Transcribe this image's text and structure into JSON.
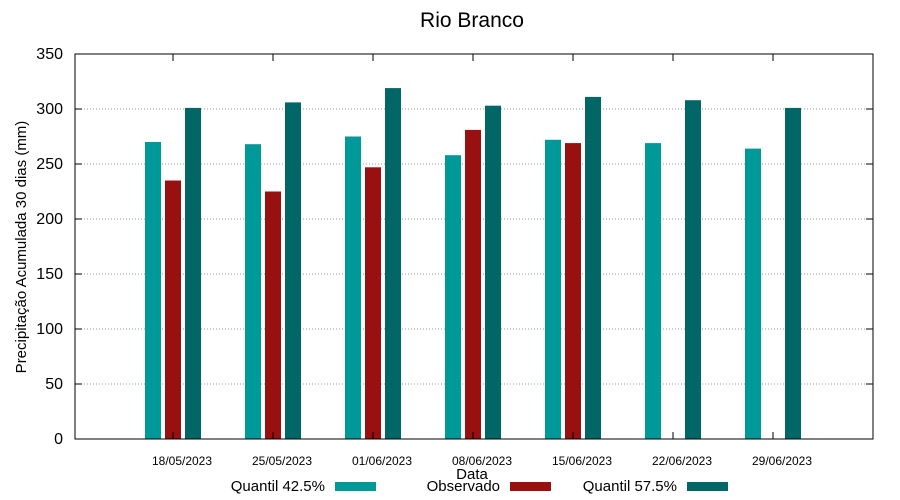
{
  "chart_data": {
    "type": "bar",
    "title": "Rio Branco",
    "xlabel": "Data",
    "ylabel": "Precipitação Acumulada 30 dias (mm)",
    "ylim": [
      0,
      350
    ],
    "yticks": [
      0,
      50,
      100,
      150,
      200,
      250,
      300,
      350
    ],
    "grid": true,
    "legend_position": "bottom",
    "categories": [
      "18/05/2023",
      "25/05/2023",
      "01/06/2023",
      "08/06/2023",
      "15/06/2023",
      "22/06/2023",
      "29/06/2023"
    ],
    "series": [
      {
        "name": "Quantil 42.5%",
        "color": "#009999",
        "values": [
          270,
          268,
          275,
          258,
          272,
          269,
          264
        ]
      },
      {
        "name": "Observado",
        "color": "#991010",
        "values": [
          235,
          225,
          247,
          281,
          269,
          null,
          null
        ]
      },
      {
        "name": "Quantil 57.5%",
        "color": "#006666",
        "values": [
          301,
          306,
          319,
          303,
          311,
          308,
          301
        ]
      }
    ]
  }
}
